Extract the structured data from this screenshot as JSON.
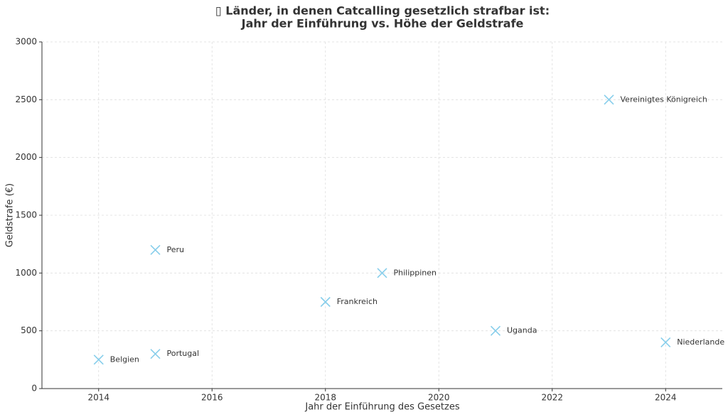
{
  "chart_data": {
    "type": "scatter",
    "title": [
      "▯ Länder, in denen Catcalling gesetzlich strafbar ist:",
      "Jahr der Einführung vs. Höhe der Geldstrafe"
    ],
    "x_label": "Jahr der Einführung des Gesetzes",
    "y_label": "Geldstrafe (€)",
    "labels": [
      "Belgien",
      "Peru",
      "Portugal",
      "Frankreich",
      "Philippinen",
      "Uganda",
      "Vereinigtes Königreich",
      "Niederlande"
    ],
    "x": [
      2014,
      2015,
      2015,
      2018,
      2019,
      2021,
      2023,
      2024
    ],
    "values": [
      250,
      1200,
      300,
      750,
      1000,
      500,
      2500,
      400
    ],
    "color": "#87ceeb",
    "xlim": [
      2013,
      2025
    ],
    "xticks": [
      2014,
      2016,
      2018,
      2020,
      2022,
      2024
    ],
    "ylim": [
      0,
      3000
    ],
    "yticks": [
      0,
      500,
      1000,
      1500,
      2000,
      2500,
      3000
    ],
    "grid": true
  }
}
